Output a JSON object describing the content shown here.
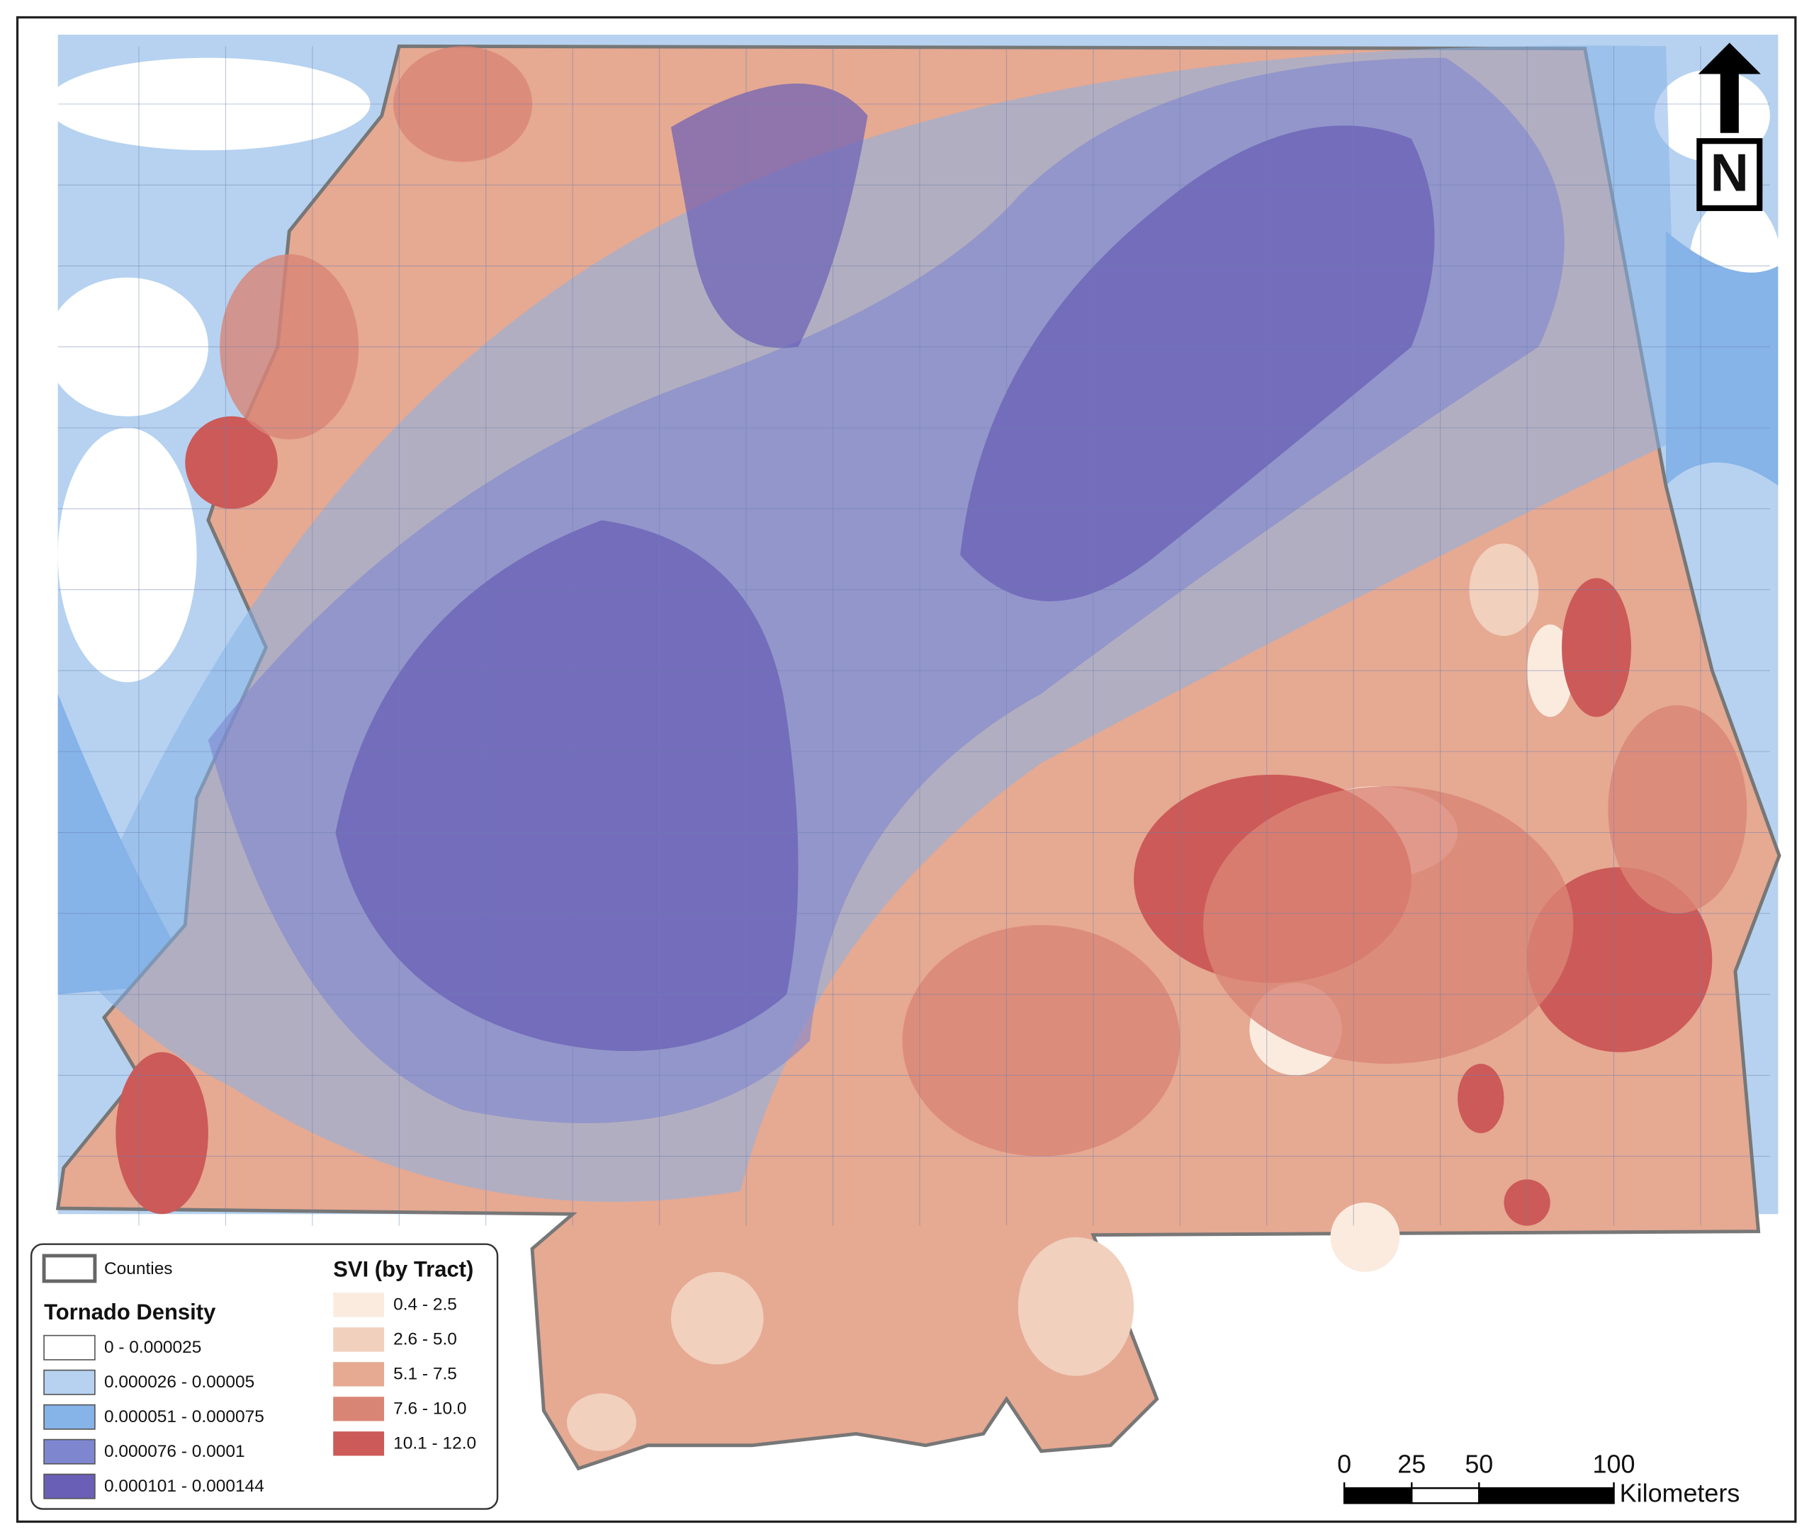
{
  "legend": {
    "counties": "Counties",
    "tornado_title": "Tornado Density",
    "tornado_classes": [
      {
        "label": "0 - 0.000025",
        "color": "#ffffff"
      },
      {
        "label": "0.000026 - 0.00005",
        "color": "#b6d2f0"
      },
      {
        "label": "0.000051 - 0.000075",
        "color": "#86b3e8"
      },
      {
        "label": "0.000076 - 0.0001",
        "color": "#7f86d0"
      },
      {
        "label": "0.000101 - 0.000144",
        "color": "#6a5fb6"
      }
    ],
    "svi_title": "SVI (by Tract)",
    "svi_classes": [
      {
        "label": "0.4 - 2.5",
        "color": "#fbebdf"
      },
      {
        "label": "2.6 - 5.0",
        "color": "#f1d0bd"
      },
      {
        "label": "5.1 - 7.5",
        "color": "#e6a992"
      },
      {
        "label": "7.6 - 10.0",
        "color": "#d98576"
      },
      {
        "label": "10.1 - 12.0",
        "color": "#cc5a58"
      }
    ]
  },
  "north_arrow": "N",
  "scale_bar": {
    "ticks": [
      0,
      25,
      50,
      100
    ],
    "unit": "Kilometers"
  }
}
